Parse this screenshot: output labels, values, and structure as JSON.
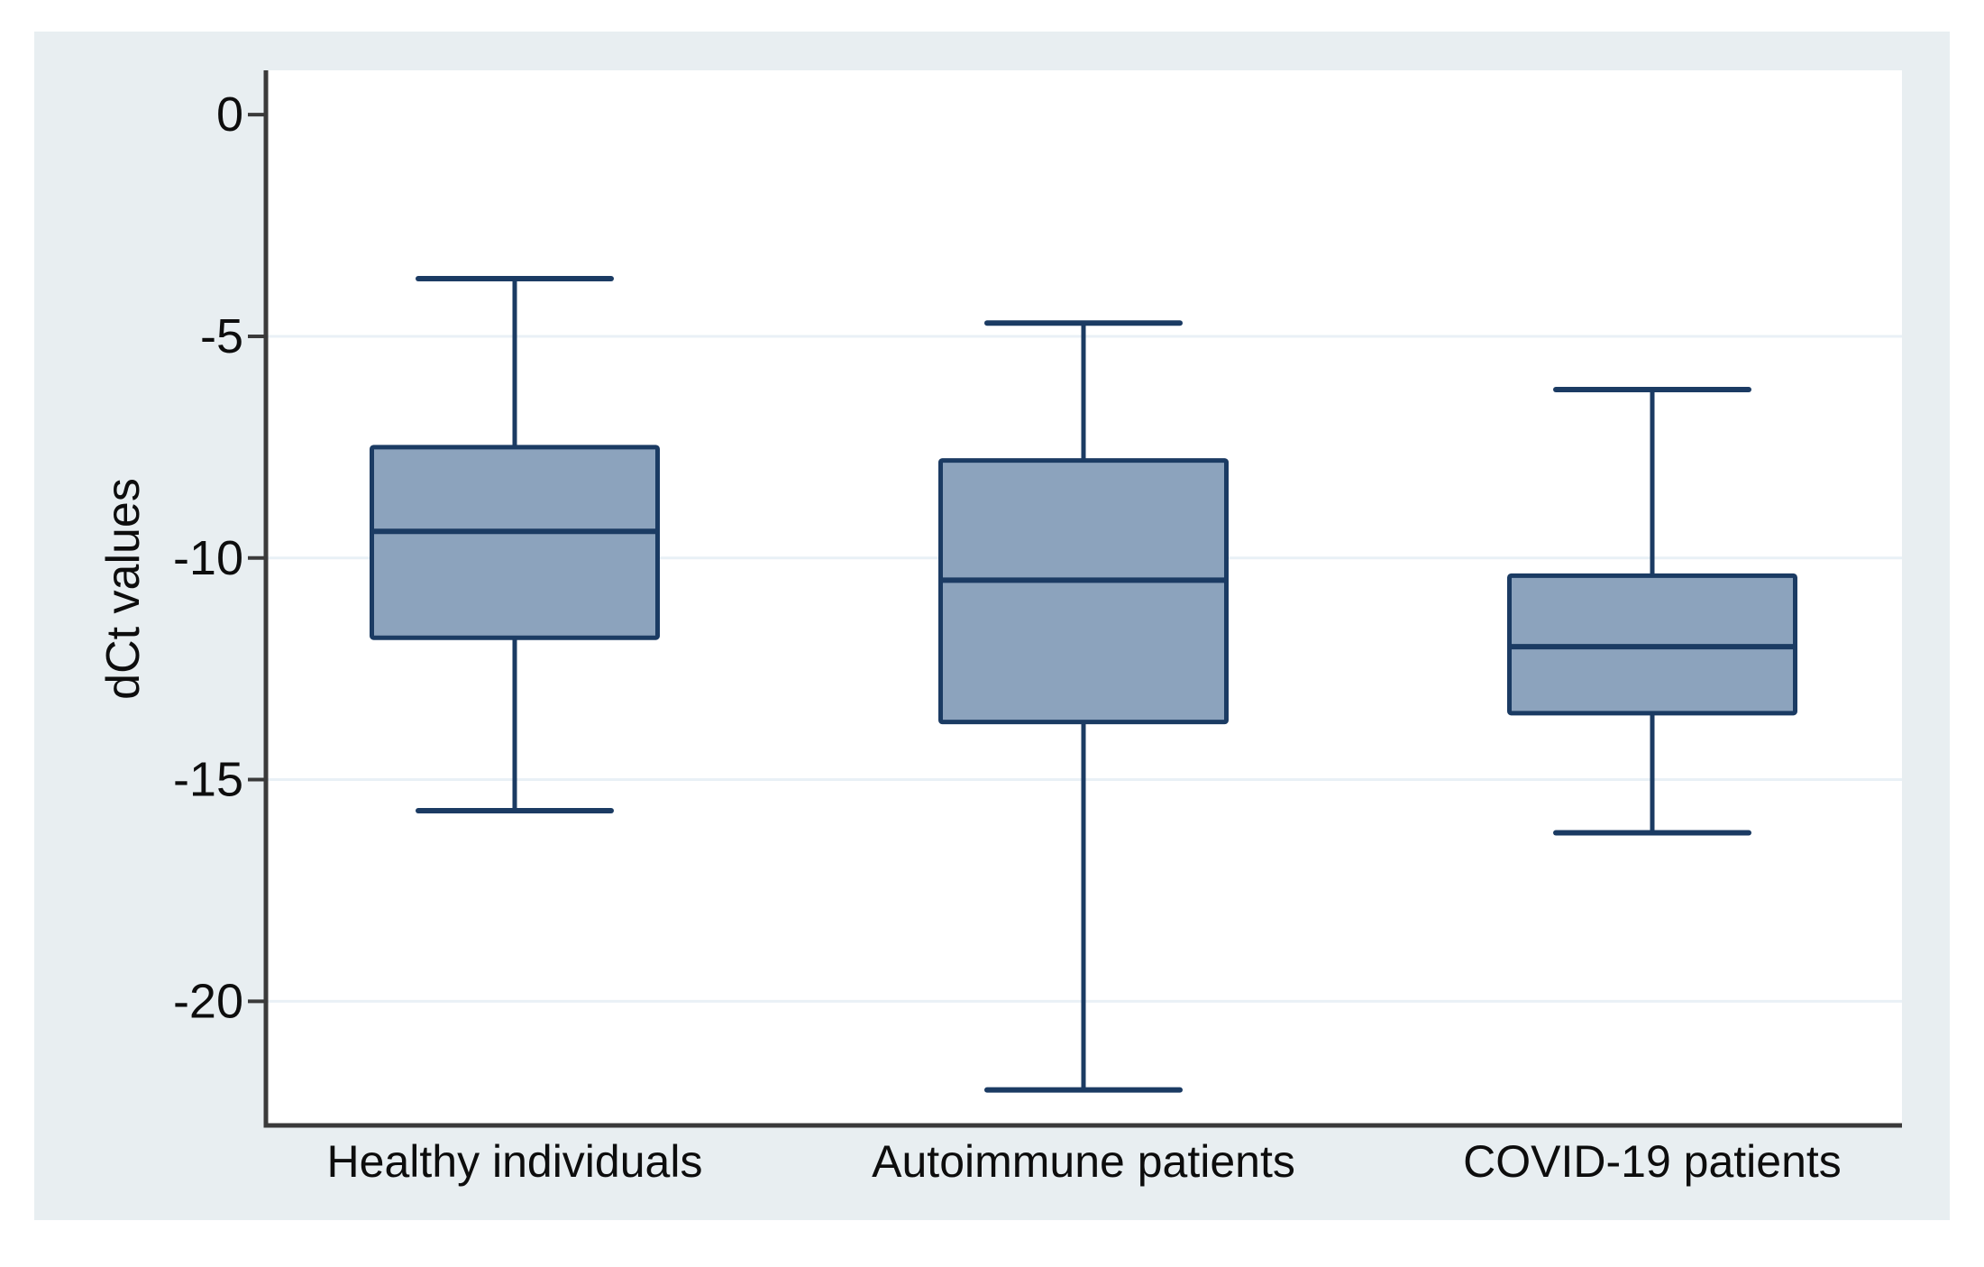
{
  "chart_data": {
    "type": "boxplot",
    "title": "",
    "xlabel": "",
    "ylabel": "dCt values",
    "categories": [
      "Healthy individuals",
      "Autoimmune patients",
      "COVID-19 patients"
    ],
    "series": [
      {
        "name": "Healthy individuals",
        "whisker_low": -15.7,
        "q1": -11.8,
        "median": -9.4,
        "q3": -7.5,
        "whisker_high": -3.7
      },
      {
        "name": "Autoimmune patients",
        "whisker_low": -22.0,
        "q1": -13.7,
        "median": -10.5,
        "q3": -7.8,
        "whisker_high": -4.7
      },
      {
        "name": "COVID-19 patients",
        "whisker_low": -16.2,
        "q1": -13.5,
        "median": -12.0,
        "q3": -10.4,
        "whisker_high": -6.2
      }
    ],
    "yticks": [
      0,
      -5,
      -10,
      -15,
      -20
    ],
    "ylim": [
      -22.8,
      1.0
    ],
    "grid": true,
    "legend": "none",
    "colors": {
      "figure_bg": "#e8eef1",
      "plot_bg": "#ffffff",
      "grid": "#e9f0f6",
      "axis": "#3a3a3a",
      "box_fill": "#8ca3bd",
      "box_stroke": "#1b3b63",
      "text": "#0d0d0d"
    }
  }
}
